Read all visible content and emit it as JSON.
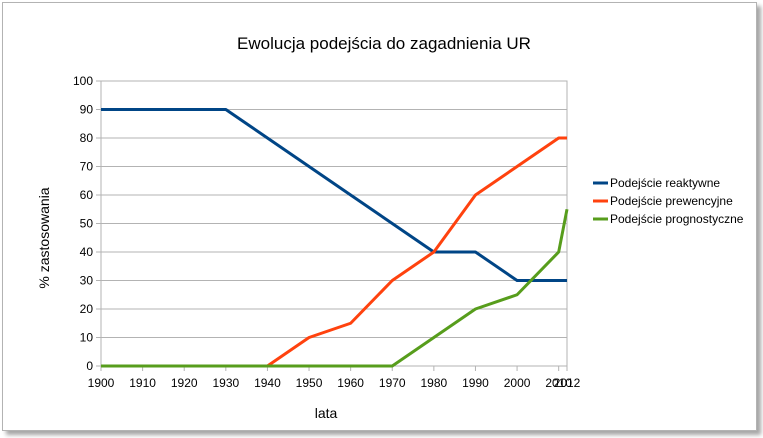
{
  "chart_data": {
    "type": "line",
    "title": "Ewolucja podejścia do zagadnienia UR",
    "xlabel": "lata",
    "ylabel": "% zastosowania",
    "x": [
      1900,
      1910,
      1920,
      1930,
      1940,
      1950,
      1960,
      1970,
      1980,
      1990,
      2000,
      2010,
      2012
    ],
    "x_tick_labels": [
      "1900",
      "1910",
      "1920",
      "1930",
      "1940",
      "1950",
      "1960",
      "1970",
      "1980",
      "1990",
      "2000",
      "2010",
      "2012"
    ],
    "ylim": [
      0,
      100
    ],
    "y_ticks": [
      0,
      10,
      20,
      30,
      40,
      50,
      60,
      70,
      80,
      90,
      100
    ],
    "grid": true,
    "legend_position": "right",
    "series": [
      {
        "name": "Podejście reaktywne",
        "color": "#004586",
        "values": [
          90,
          90,
          90,
          90,
          80,
          70,
          60,
          50,
          40,
          40,
          30,
          30,
          30
        ]
      },
      {
        "name": "Podejście prewencyjne",
        "color": "#ff420e",
        "values": [
          0,
          0,
          0,
          0,
          0,
          10,
          15,
          30,
          40,
          60,
          70,
          80,
          80
        ]
      },
      {
        "name": "Podejście prognostyczne",
        "color": "#579d1c",
        "values": [
          0,
          0,
          0,
          0,
          0,
          0,
          0,
          0,
          10,
          20,
          25,
          40,
          55
        ]
      }
    ]
  }
}
